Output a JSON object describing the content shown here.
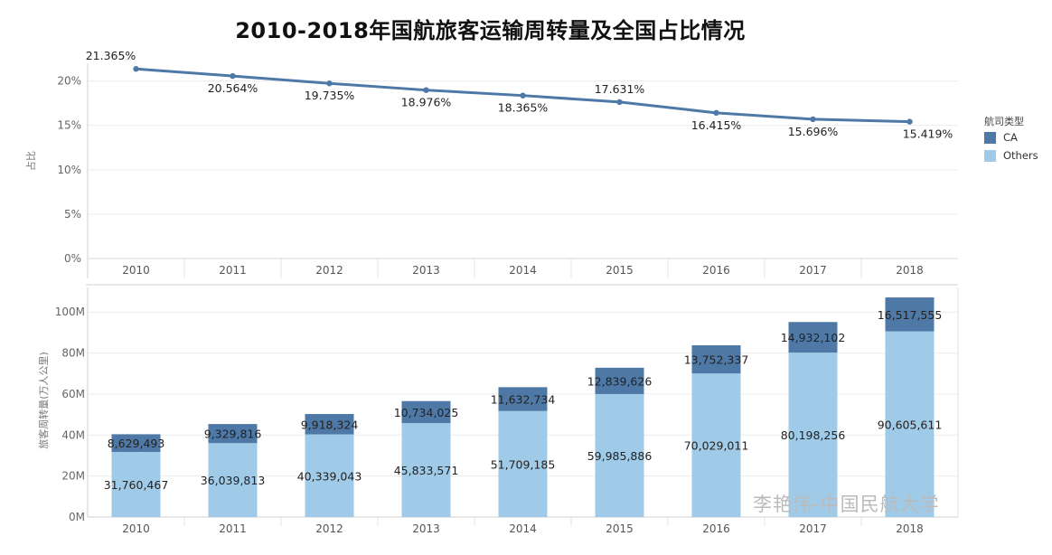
{
  "title": "2010-2018年国航旅客运输周转量及全国占比情况",
  "watermark": "李艳伟-中国民航大学",
  "legend": {
    "title": "航司类型",
    "items": [
      {
        "label": "CA",
        "color": "#4e79a7"
      },
      {
        "label": "Others",
        "color": "#a0cbe8"
      }
    ]
  },
  "chart_data": [
    {
      "type": "line",
      "x": [
        "2010",
        "2011",
        "2012",
        "2013",
        "2014",
        "2015",
        "2016",
        "2017",
        "2018"
      ],
      "series": [
        {
          "values": [
            21.365,
            20.564,
            19.735,
            18.976,
            18.365,
            17.631,
            16.415,
            15.696,
            15.419
          ],
          "labels": [
            "21.365%",
            "20.564%",
            "19.735%",
            "18.976%",
            "18.365%",
            "17.631%",
            "16.415%",
            "15.696%",
            "15.419%"
          ],
          "color": "#4e79a7"
        }
      ],
      "ylabel": "占比",
      "ylim": [
        0,
        22
      ],
      "yticks": [
        "0%",
        "5%",
        "10%",
        "15%",
        "20%"
      ],
      "ytick_values": [
        0,
        5,
        10,
        15,
        20
      ],
      "grid": true
    },
    {
      "type": "bar",
      "stacked": true,
      "categories": [
        "2010",
        "2011",
        "2012",
        "2013",
        "2014",
        "2015",
        "2016",
        "2017",
        "2018"
      ],
      "series": [
        {
          "name": "Others",
          "color": "#a0cbe8",
          "values": [
            31760467,
            36039813,
            40339043,
            45833571,
            51709185,
            59985886,
            70029011,
            80198256,
            90605611
          ],
          "labels": [
            "31,760,467",
            "36,039,813",
            "40,339,043",
            "45,833,571",
            "51,709,185",
            "59,985,886",
            "70,029,011",
            "80,198,256",
            "90,605,611"
          ]
        },
        {
          "name": "CA",
          "color": "#4e79a7",
          "values": [
            8629493,
            9329816,
            9918324,
            10734025,
            11632734,
            12839626,
            13752337,
            14932102,
            16517555
          ],
          "labels": [
            "8,629,493",
            "9,329,816",
            "9,918,324",
            "10,734,025",
            "11,632,734",
            "12,839,626",
            "13,752,337",
            "14,932,102",
            "16,517,555"
          ]
        }
      ],
      "ylabel": "旅客周转量(万人公里)",
      "ylim": [
        0,
        112000000
      ],
      "yticks": [
        "0M",
        "20M",
        "40M",
        "60M",
        "80M",
        "100M"
      ],
      "ytick_values": [
        0,
        20000000,
        40000000,
        60000000,
        80000000,
        100000000
      ],
      "grid": true
    }
  ]
}
